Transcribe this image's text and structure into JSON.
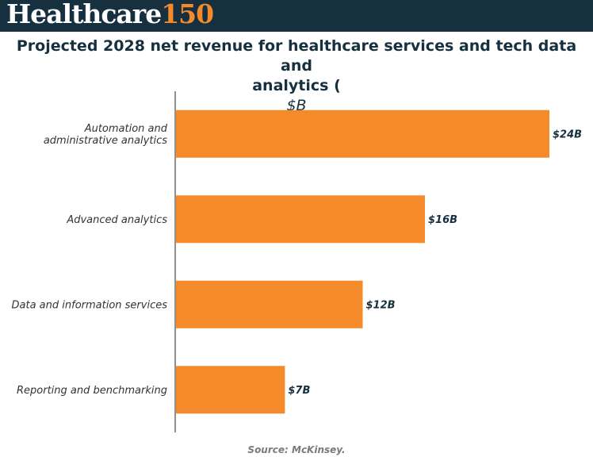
{
  "header": {
    "logo_word": "Healthcare",
    "logo_number": "150",
    "accent": "#f58a2a",
    "background": "#16303f"
  },
  "chart_data": {
    "type": "bar",
    "orientation": "horizontal",
    "title_line1": "Projected 2028 net revenue for healthcare services and tech data and",
    "title_line2": "analytics (",
    "title_unit": "$B",
    "title_close": ")",
    "categories": [
      [
        "Automation and",
        "administrative analytics"
      ],
      [
        "Advanced analytics"
      ],
      [
        "Data and information services"
      ],
      [
        "Reporting and benchmarking"
      ]
    ],
    "values": [
      24,
      16,
      12,
      7
    ],
    "value_labels": [
      "$24B",
      "$16B",
      "$12B",
      "$7B"
    ],
    "xlim": [
      0,
      24
    ],
    "bar_color": "#f58a2a",
    "grid": false
  },
  "footer": {
    "source": "Source: McKinsey."
  }
}
